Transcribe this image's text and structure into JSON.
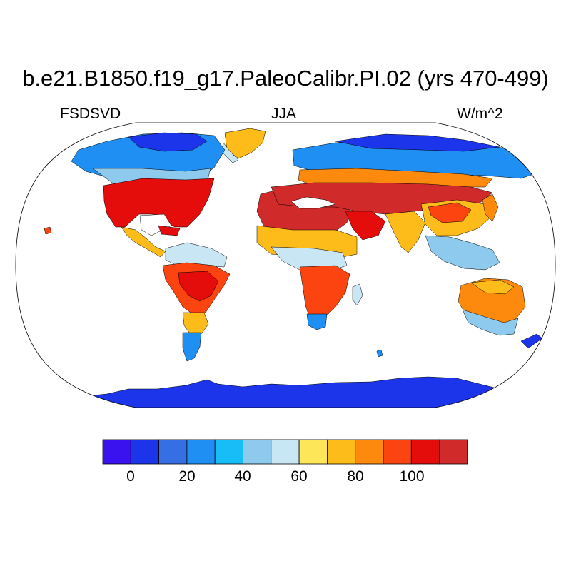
{
  "title": "b.e21.B1850.f19_g17.PaleoCalibr.PI.02 (yrs 470-499)",
  "variable": "FSDSVD",
  "season": "JJA",
  "units": "W/m^2",
  "colors": {
    "c0": "#3a12f0",
    "c1": "#1c35eb",
    "c2": "#366fe4",
    "c3": "#1f8ff3",
    "c4": "#17bdf6",
    "c5": "#8ec9ee",
    "c6": "#c9e6f5",
    "c7": "#fde759",
    "c8": "#fdbc1a",
    "c9": "#fd8a0d",
    "c10": "#fc4410",
    "c11": "#e50c0c",
    "c12": "#d02a2a"
  },
  "colorbar": {
    "labels": [
      "0",
      "20",
      "40",
      "60",
      "80",
      "100"
    ]
  }
}
